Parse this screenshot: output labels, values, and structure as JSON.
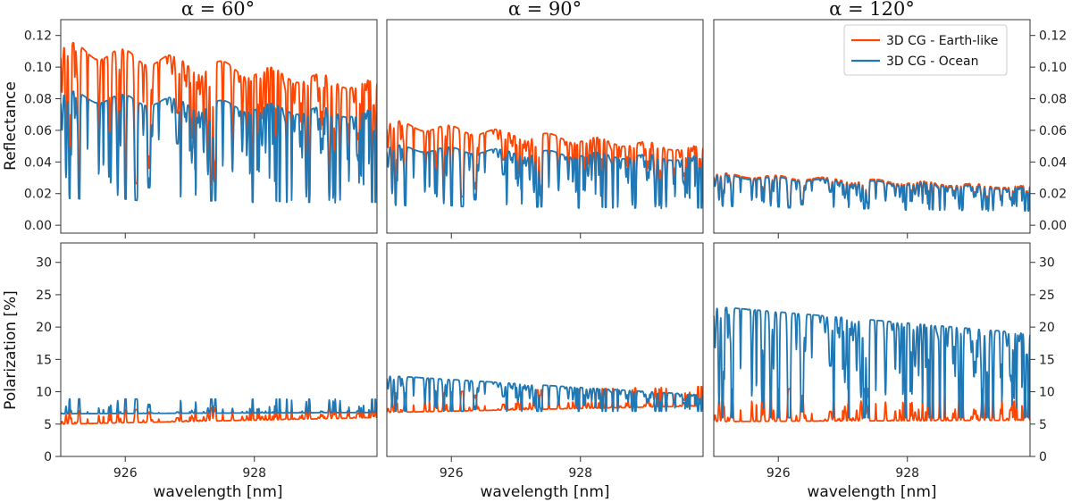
{
  "chart_data": {
    "type": "line",
    "xlabel": "wavelength [nm]",
    "xlim": [
      925.0,
      929.9
    ],
    "xticks": [
      926,
      928
    ],
    "x_tick_labels": [
      "926",
      "928"
    ],
    "phase_angles": [
      {
        "title": "α = 60°"
      },
      {
        "title": "α = 90°"
      },
      {
        "title": "α = 120°"
      }
    ],
    "rows": [
      {
        "ylabel": "Reflectance",
        "ylim": [
          -0.005,
          0.13
        ],
        "yticks": [
          0.0,
          0.02,
          0.04,
          0.06,
          0.08,
          0.1,
          0.12
        ],
        "y_tick_labels": [
          "0.00",
          "0.02",
          "0.04",
          "0.06",
          "0.08",
          "0.10",
          "0.12"
        ]
      },
      {
        "ylabel": "Polarization [%]",
        "ylim": [
          0,
          33
        ],
        "yticks": [
          0,
          5,
          10,
          15,
          20,
          25,
          30
        ],
        "y_tick_labels": [
          "0",
          "5",
          "10",
          "15",
          "20",
          "25",
          "30"
        ]
      }
    ],
    "series": [
      {
        "name": "3D CG - Earth-like",
        "color": "#ff4500"
      },
      {
        "name": "3D CG - Ocean",
        "color": "#1f77b4"
      }
    ],
    "legend_position": "top-right of α = 120° reflectance panel",
    "panels": [
      {
        "row": 0,
        "col": 0,
        "earth_continuum": [
          0.112,
          0.088
        ],
        "earth_depth": 0.75,
        "ocean_continuum": [
          0.082,
          0.07
        ],
        "ocean_depth": 0.8
      },
      {
        "row": 0,
        "col": 1,
        "earth_continuum": [
          0.064,
          0.048
        ],
        "earth_depth": 0.7,
        "ocean_continuum": [
          0.049,
          0.042
        ],
        "ocean_depth": 0.75
      },
      {
        "row": 0,
        "col": 2,
        "earth_continuum": [
          0.032,
          0.024
        ],
        "earth_depth": 0.6,
        "ocean_continuum": [
          0.031,
          0.023
        ],
        "ocean_depth": 0.62
      },
      {
        "row": 1,
        "col": 0,
        "earth_baseline": [
          5.0,
          6.0
        ],
        "earth_peak": 1.0,
        "ocean_baseline": [
          6.6,
          6.8
        ],
        "ocean_spikes": 8.5
      },
      {
        "row": 1,
        "col": 1,
        "earth_baseline": [
          6.8,
          7.8
        ],
        "earth_peak": 1.5,
        "ocean_continuum": [
          12.5,
          9.5
        ],
        "ocean_dip_to": 7.0
      },
      {
        "row": 1,
        "col": 2,
        "earth_baseline": [
          5.4,
          5.6
        ],
        "earth_peak": 2.5,
        "ocean_continuum": [
          23.2,
          19.0
        ],
        "ocean_dip_to": 6.0
      }
    ]
  }
}
